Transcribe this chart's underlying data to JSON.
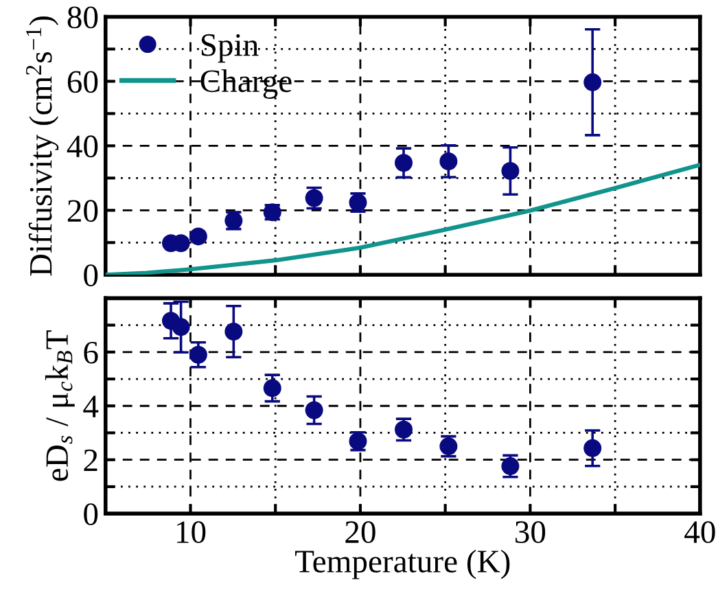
{
  "chart_data": [
    {
      "type": "scatter",
      "ylabel": "Diffusivity (cm$^{2}$s$^{−1}$)",
      "xlim": [
        5,
        40
      ],
      "ylim": [
        0,
        80
      ],
      "xticks": [
        10,
        {
          "value": 15,
          "label": null
        },
        20,
        {
          "value": 25,
          "label": null
        },
        30,
        {
          "value": 35,
          "label": null
        },
        40
      ],
      "yticks": [
        0,
        {
          "value": 10,
          "label": null
        },
        20,
        {
          "value": 30,
          "label": null
        },
        40,
        {
          "value": 50,
          "label": null
        },
        60,
        {
          "value": 70,
          "label": null
        },
        80
      ],
      "tick_labels": "y",
      "grid": true,
      "legend": "top left",
      "series": [
        {
          "name": "Spin",
          "color": "#0a0a80",
          "marker": "circle",
          "x": [
            8.85,
            9.44,
            10.46,
            12.54,
            14.82,
            17.28,
            19.86,
            22.55,
            25.19,
            28.83,
            33.67
          ],
          "values": [
            9.8,
            9.8,
            11.9,
            16.8,
            19.4,
            23.8,
            22.4,
            34.7,
            35.2,
            32.2,
            59.7
          ],
          "errors": [
            1,
            1,
            1.2,
            2.6,
            2.2,
            3.2,
            2.8,
            4.5,
            4.9,
            7.3,
            16.4
          ]
        },
        {
          "name": "Charge",
          "type": "line",
          "color": "#10948c",
          "marker": "none",
          "line_style": "solid",
          "x": [
            5,
            7.4,
            10,
            12.5,
            15,
            20,
            25,
            30,
            35,
            40
          ],
          "values": [
            0,
            0.6,
            1.7,
            3.1,
            4.5,
            8.4,
            14,
            19.9,
            26.9,
            34.1
          ]
        }
      ]
    },
    {
      "type": "scatter",
      "ylabel": "eD$_{s}$ / μ$_{c}$k$_{B}$T",
      "xlabel": "Temperature (K)",
      "xlim": [
        5,
        40
      ],
      "ylim": [
        0,
        8
      ],
      "xticks": [
        {
          "value": 10,
          "label": "10"
        },
        {
          "value": 15,
          "label": null
        },
        {
          "value": 20,
          "label": "20"
        },
        {
          "value": 25,
          "label": null
        },
        {
          "value": 30,
          "label": "30"
        },
        {
          "value": 35,
          "label": null
        },
        {
          "value": 40,
          "label": "40"
        }
      ],
      "yticks": [
        0,
        {
          "value": 1,
          "label": null
        },
        2,
        {
          "value": 3,
          "label": null
        },
        4,
        {
          "value": 5,
          "label": null
        },
        6,
        {
          "value": 7,
          "label": null
        }
      ],
      "grid": true,
      "series": [
        {
          "color": "#0a0a80",
          "marker": "circle",
          "x": [
            8.85,
            9.44,
            10.46,
            12.54,
            14.82,
            17.28,
            19.86,
            22.55,
            25.19,
            28.83,
            33.67
          ],
          "values": [
            7.16,
            6.93,
            5.9,
            6.76,
            4.66,
            3.84,
            2.69,
            3.12,
            2.5,
            1.76,
            2.43
          ],
          "errors": [
            0.65,
            0.94,
            0.46,
            0.95,
            0.49,
            0.51,
            0.33,
            0.4,
            0.37,
            0.4,
            0.66
          ]
        }
      ]
    }
  ]
}
